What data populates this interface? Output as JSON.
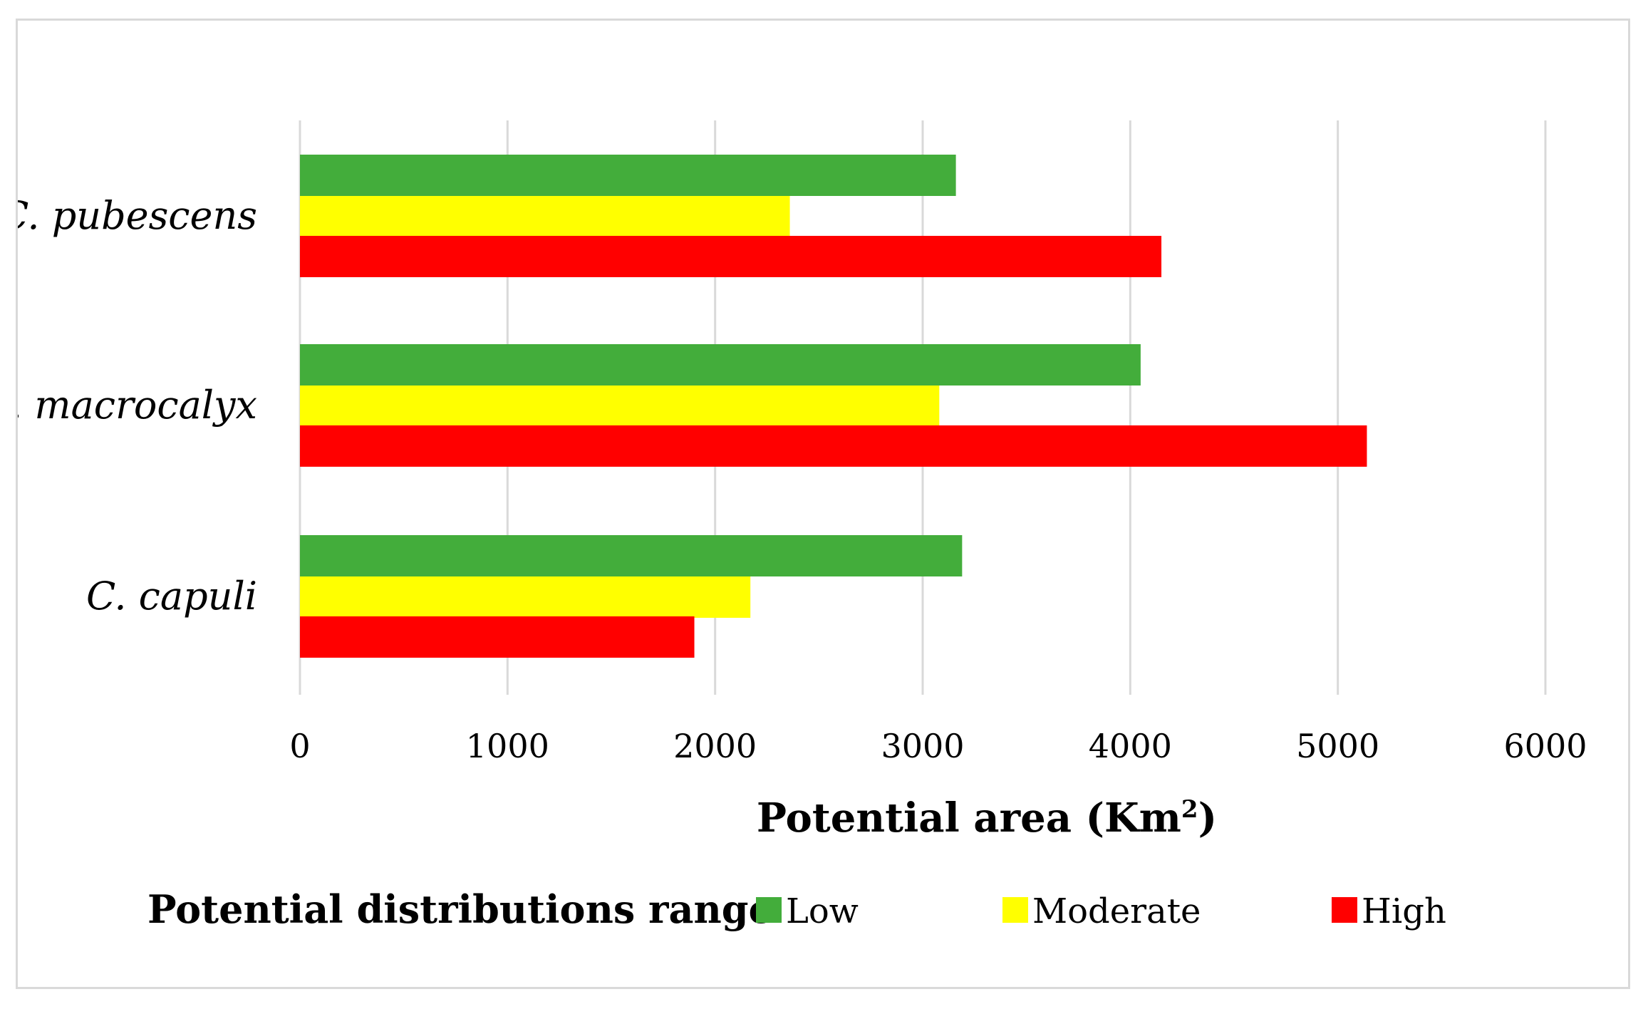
{
  "chart_data": {
    "type": "bar",
    "orientation": "horizontal",
    "categories": [
      "C. pubescens",
      "C. macrocalyx",
      "C. capuli"
    ],
    "series": [
      {
        "name": "Low",
        "color": "#43ad3b",
        "values": [
          3160,
          4050,
          3190
        ]
      },
      {
        "name": "Moderate",
        "color": "#ffff00",
        "values": [
          2360,
          3080,
          2170
        ]
      },
      {
        "name": "High",
        "color": "#ff0000",
        "values": [
          4150,
          5140,
          1900
        ]
      }
    ],
    "xlabel": "Potential area (Km",
    "xlabel_sup": "2",
    "xlabel_end": ")",
    "xlim": [
      0,
      6000
    ],
    "xticks": [
      "0",
      "1000",
      "2000",
      "3000",
      "4000",
      "5000",
      "6000"
    ],
    "legend_title": "Potential distributions range",
    "grid": true,
    "legend_position": "bottom"
  }
}
